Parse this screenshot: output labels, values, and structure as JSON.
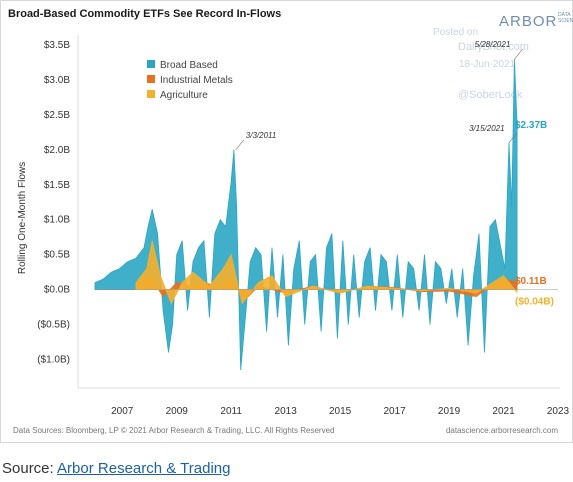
{
  "header": {
    "title": "Broad-Based Commodity ETFs See Record In-Flows",
    "logo_text": "ARBOR",
    "logo_sub": "DATA SCIENCE"
  },
  "watermark": {
    "line1": "Posted on",
    "line2": "DailyShot.com",
    "line3": "18-Jun-2021",
    "line4": "@SoberLook"
  },
  "footer": {
    "sources": "Data Sources: Bloomberg, LP © 2021 Arbor Research & Trading, LLC. All Rights Reserved",
    "site": "datascience.arborresearch.com"
  },
  "caption": {
    "prefix": "Source: ",
    "link": "Arbor Research & Trading"
  },
  "colors": {
    "broad_based": "#2aa6c4",
    "industrial_metals": "#e8711e",
    "agriculture": "#f5b02c"
  },
  "chart_data": {
    "type": "area",
    "title": "Broad-Based Commodity ETFs See Record In-Flows",
    "ylabel": "Rolling One-Month Flows",
    "xlabel": "",
    "xlim": [
      2006,
      2023
    ],
    "ylim": [
      -1.15,
      3.5
    ],
    "x_ticks": [
      "2007",
      "2009",
      "2011",
      "2013",
      "2015",
      "2017",
      "2019",
      "2021",
      "2023"
    ],
    "x_tick_values": [
      2007,
      2009,
      2011,
      2013,
      2015,
      2017,
      2019,
      2021,
      2023
    ],
    "y_ticks": [
      "$3.5B",
      "$3.0B",
      "$2.5B",
      "$2.0B",
      "$1.5B",
      "$1.0B",
      "$0.5B",
      "$0.0B",
      "($0.5B)",
      "($1.0B)"
    ],
    "y_tick_values": [
      3.5,
      3.0,
      2.5,
      2.0,
      1.5,
      1.0,
      0.5,
      0.0,
      -0.5,
      -1.0
    ],
    "grid": false,
    "legend": "top-left",
    "series": [
      {
        "name": "Broad Based",
        "x": [
          2006.0,
          2006.3,
          2006.6,
          2006.9,
          2007.2,
          2007.5,
          2007.8,
          2007.95,
          2008.1,
          2008.3,
          2008.5,
          2008.7,
          2008.85,
          2009.0,
          2009.2,
          2009.4,
          2009.6,
          2009.8,
          2010.0,
          2010.2,
          2010.4,
          2010.6,
          2010.8,
          2011.0,
          2011.1,
          2011.2,
          2011.35,
          2011.5,
          2011.7,
          2011.9,
          2012.1,
          2012.3,
          2012.5,
          2012.7,
          2012.9,
          2013.1,
          2013.3,
          2013.5,
          2013.7,
          2013.9,
          2014.1,
          2014.3,
          2014.5,
          2014.7,
          2014.9,
          2015.1,
          2015.3,
          2015.5,
          2015.7,
          2015.9,
          2016.1,
          2016.3,
          2016.5,
          2016.7,
          2016.9,
          2017.1,
          2017.3,
          2017.5,
          2017.7,
          2017.9,
          2018.1,
          2018.3,
          2018.5,
          2018.7,
          2018.9,
          2019.1,
          2019.3,
          2019.5,
          2019.7,
          2019.9,
          2020.1,
          2020.3,
          2020.5,
          2020.7,
          2020.9,
          2021.05,
          2021.2,
          2021.3,
          2021.4,
          2021.5
        ],
        "values": [
          0.1,
          0.15,
          0.25,
          0.3,
          0.4,
          0.45,
          0.6,
          0.9,
          1.15,
          0.8,
          -0.3,
          -0.9,
          -0.5,
          0.5,
          0.7,
          -0.3,
          0.4,
          0.6,
          0.7,
          -0.4,
          0.8,
          1.0,
          0.9,
          1.55,
          2.0,
          1.2,
          -1.15,
          -0.5,
          0.4,
          0.6,
          0.5,
          -0.6,
          0.6,
          -0.4,
          0.5,
          -0.8,
          0.3,
          0.7,
          -0.5,
          0.4,
          0.5,
          -0.6,
          0.6,
          0.8,
          -0.7,
          0.7,
          -0.5,
          0.5,
          -0.4,
          0.4,
          0.6,
          -0.3,
          0.5,
          0.4,
          -0.3,
          0.5,
          -0.4,
          0.4,
          0.3,
          -0.3,
          0.5,
          -0.5,
          0.4,
          0.3,
          -0.2,
          0.3,
          -0.4,
          0.3,
          -0.8,
          0.2,
          0.8,
          -0.9,
          0.9,
          1.0,
          0.6,
          0.3,
          2.1,
          1.2,
          3.3,
          2.37
        ]
      },
      {
        "name": "Industrial Metals",
        "x": [
          2007.5,
          2008.0,
          2008.5,
          2009.0,
          2009.5,
          2010.0,
          2010.5,
          2011.0,
          2011.5,
          2012.0,
          2013.0,
          2014.0,
          2015.0,
          2016.0,
          2017.0,
          2018.0,
          2019.0,
          2020.0,
          2020.5,
          2021.0,
          2021.5
        ],
        "values": [
          0.05,
          0.2,
          -0.1,
          0.1,
          0.05,
          0.1,
          0.05,
          0.15,
          -0.15,
          0.05,
          -0.05,
          0.05,
          -0.05,
          0.05,
          0.03,
          -0.03,
          -0.02,
          -0.1,
          0.05,
          0.15,
          0.11
        ]
      },
      {
        "name": "Agriculture",
        "x": [
          2007.5,
          2007.9,
          2008.1,
          2008.4,
          2008.8,
          2009.2,
          2009.6,
          2010.2,
          2010.7,
          2011.0,
          2011.4,
          2012.0,
          2012.5,
          2013.0,
          2014.0,
          2015.0,
          2016.0,
          2017.0,
          2018.0,
          2019.0,
          2020.0,
          2020.6,
          2021.0,
          2021.5
        ],
        "values": [
          0.1,
          0.3,
          0.7,
          0.2,
          -0.2,
          0.1,
          0.25,
          0.05,
          0.3,
          0.5,
          -0.2,
          0.1,
          0.2,
          -0.1,
          0.05,
          -0.05,
          0.05,
          0.02,
          -0.02,
          0.02,
          -0.05,
          0.1,
          0.2,
          -0.04
        ]
      }
    ],
    "annotations": [
      {
        "text": "3/3/2011",
        "x": 2011.17,
        "y": 2.0
      },
      {
        "text": "3/15/2021",
        "x": 2021.2,
        "y": 2.1
      },
      {
        "text": "5/28/2021",
        "x": 2021.41,
        "y": 3.3
      }
    ],
    "end_labels": [
      {
        "text": "$2.37B",
        "series": "Broad Based",
        "value": 2.37
      },
      {
        "text": "$0.11B",
        "series": "Industrial Metals",
        "value": 0.11
      },
      {
        "text": "($0.04B)",
        "series": "Agriculture",
        "value": -0.04
      }
    ]
  }
}
